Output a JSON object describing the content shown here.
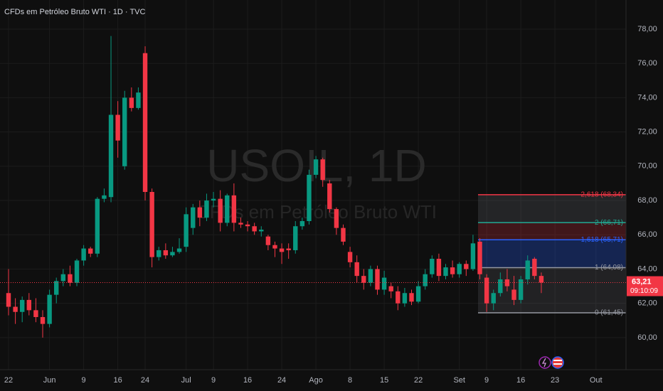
{
  "chart_data": {
    "type": "candlestick",
    "title": "CFDs em Petróleo Bruto WTI · 1D · TVC",
    "watermark": "USOIL, 1D",
    "watermark_subtitle": "CFDs em Petróleo Bruto WTI",
    "up_color": "#089981",
    "down_color": "#f23645",
    "grid": true,
    "xlim": [
      -1.25,
      90.4
    ],
    "ylim": [
      58.13,
      79.7
    ],
    "yticks": [
      {
        "value": 60,
        "label": "60,00"
      },
      {
        "value": 62,
        "label": "62,00"
      },
      {
        "value": 64,
        "label": "64,00"
      },
      {
        "value": 66,
        "label": "66,00"
      },
      {
        "value": 68,
        "label": "68,00"
      },
      {
        "value": 70,
        "label": "70,00"
      },
      {
        "value": 72,
        "label": "72,00"
      },
      {
        "value": 74,
        "label": "74,00"
      },
      {
        "value": 76,
        "label": "76,00"
      },
      {
        "value": 78,
        "label": "78,00"
      }
    ],
    "xticks": [
      {
        "value": 0,
        "label": "22"
      },
      {
        "value": 6,
        "label": "Jun"
      },
      {
        "value": 11,
        "label": "9"
      },
      {
        "value": 16,
        "label": "16"
      },
      {
        "value": 20,
        "label": "24"
      },
      {
        "value": 26,
        "label": "Jul"
      },
      {
        "value": 30,
        "label": "9"
      },
      {
        "value": 35,
        "label": "16"
      },
      {
        "value": 40,
        "label": "24"
      },
      {
        "value": 45,
        "label": "Ago"
      },
      {
        "value": 50,
        "label": "8"
      },
      {
        "value": 55,
        "label": "15"
      },
      {
        "value": 60,
        "label": "22"
      },
      {
        "value": 66,
        "label": "Set"
      },
      {
        "value": 70,
        "label": "9"
      },
      {
        "value": 75,
        "label": "16"
      },
      {
        "value": 80,
        "label": "23"
      },
      {
        "value": 86,
        "label": "Out"
      }
    ],
    "open": [
      62.6,
      61.8,
      61.5,
      62.2,
      61.6,
      61.2,
      60.8,
      62.5,
      63.3,
      63.7,
      63.2,
      64.5,
      65.2,
      64.9,
      68.1,
      68.2,
      73.0,
      70.0,
      74.0,
      73.4,
      76.6,
      68.5,
      64.7,
      65.1,
      64.8,
      65.0,
      65.3,
      66.4,
      67.6,
      67.0,
      68.0,
      68.1,
      66.7,
      68.3,
      66.7,
      66.6,
      66.5,
      66.2,
      65.9,
      65.4,
      65.2,
      65.2,
      65.1,
      66.5,
      66.8,
      69.5,
      70.4,
      69.0,
      67.5,
      66.4,
      65.0,
      64.4,
      63.6,
      63.2,
      64.0,
      62.8,
      63.0,
      62.7,
      62.0,
      62.6,
      62.1,
      63.0,
      63.7,
      64.6,
      63.6,
      64.1,
      63.7,
      64.3,
      64.0,
      65.6,
      63.5,
      62.0,
      62.6,
      63.4,
      62.8,
      62.2,
      63.4,
      64.6,
      63.6
    ],
    "high": [
      64.0,
      62.3,
      62.4,
      62.6,
      62.3,
      61.6,
      62.8,
      63.5,
      64.0,
      64.2,
      64.6,
      65.4,
      65.3,
      68.2,
      68.7,
      77.6,
      73.8,
      74.4,
      74.6,
      74.6,
      77.0,
      68.7,
      65.3,
      65.5,
      65.3,
      65.8,
      67.6,
      67.8,
      68.0,
      68.4,
      68.5,
      68.6,
      68.4,
      69.0,
      67.0,
      66.8,
      66.7,
      66.5,
      66.0,
      65.6,
      65.5,
      65.5,
      66.8,
      67.0,
      69.8,
      70.6,
      70.5,
      69.2,
      67.6,
      66.6,
      65.3,
      64.8,
      64.0,
      64.2,
      64.2,
      63.9,
      63.2,
      63.0,
      62.9,
      62.8,
      63.3,
      64.0,
      64.8,
      64.9,
      64.3,
      64.5,
      64.4,
      64.5,
      66.0,
      65.8,
      63.7,
      62.8,
      63.8,
      64.0,
      63.6,
      63.6,
      64.8,
      64.7,
      63.8
    ],
    "low": [
      61.3,
      60.8,
      60.9,
      61.3,
      60.9,
      60.0,
      60.6,
      62.0,
      63.0,
      63.0,
      63.0,
      64.2,
      64.7,
      64.7,
      67.9,
      67.9,
      70.5,
      69.8,
      73.2,
      73.3,
      68.0,
      64.1,
      64.5,
      64.6,
      64.7,
      64.9,
      65.0,
      66.0,
      66.5,
      66.8,
      67.6,
      66.2,
      66.5,
      66.2,
      66.4,
      66.2,
      66.0,
      65.9,
      65.1,
      64.7,
      64.3,
      64.6,
      64.9,
      66.3,
      66.6,
      69.3,
      68.8,
      67.3,
      66.0,
      65.4,
      64.1,
      63.2,
      62.8,
      63.0,
      62.5,
      62.5,
      62.3,
      61.6,
      61.8,
      61.9,
      62.0,
      62.8,
      63.5,
      63.3,
      63.4,
      63.5,
      63.5,
      63.6,
      63.9,
      63.4,
      61.5,
      61.6,
      62.4,
      62.7,
      61.9,
      62.0,
      63.1,
      63.4,
      62.6
    ],
    "close": [
      61.8,
      61.5,
      62.2,
      61.6,
      61.2,
      60.8,
      62.5,
      63.3,
      63.7,
      63.2,
      64.5,
      65.2,
      64.9,
      68.1,
      68.3,
      73.0,
      71.5,
      74.0,
      73.4,
      74.3,
      68.5,
      64.7,
      65.1,
      64.8,
      65.0,
      65.2,
      67.2,
      67.6,
      67.0,
      68.0,
      68.1,
      66.7,
      68.3,
      66.7,
      66.6,
      66.5,
      66.2,
      66.3,
      65.4,
      65.2,
      65.0,
      65.1,
      66.5,
      66.8,
      69.5,
      70.4,
      69.2,
      67.5,
      66.4,
      65.6,
      64.4,
      63.6,
      63.2,
      64.0,
      62.8,
      63.5,
      62.7,
      62.0,
      62.6,
      62.1,
      63.0,
      63.7,
      64.6,
      63.6,
      64.1,
      63.7,
      64.3,
      64.0,
      65.5,
      63.7,
      62.0,
      62.6,
      63.4,
      63.0,
      62.2,
      63.4,
      64.5,
      63.6,
      63.21
    ],
    "last_price": {
      "value": 63.21,
      "label": "63,21",
      "countdown": "09:10:09"
    },
    "fib": [
      {
        "value": 61.45,
        "label": "0 (61,45)",
        "color": "#9598a1"
      },
      {
        "value": 64.08,
        "label": "1 (64,08)",
        "color": "#9598a1"
      },
      {
        "value": 65.71,
        "label": "1,618 (65,71)",
        "color": "#2962ff"
      },
      {
        "value": 66.71,
        "label": "2 (66,71)",
        "color": "#22ab94"
      },
      {
        "value": 68.34,
        "label": "2,618 (68,34)",
        "color": "#f23645"
      }
    ]
  }
}
